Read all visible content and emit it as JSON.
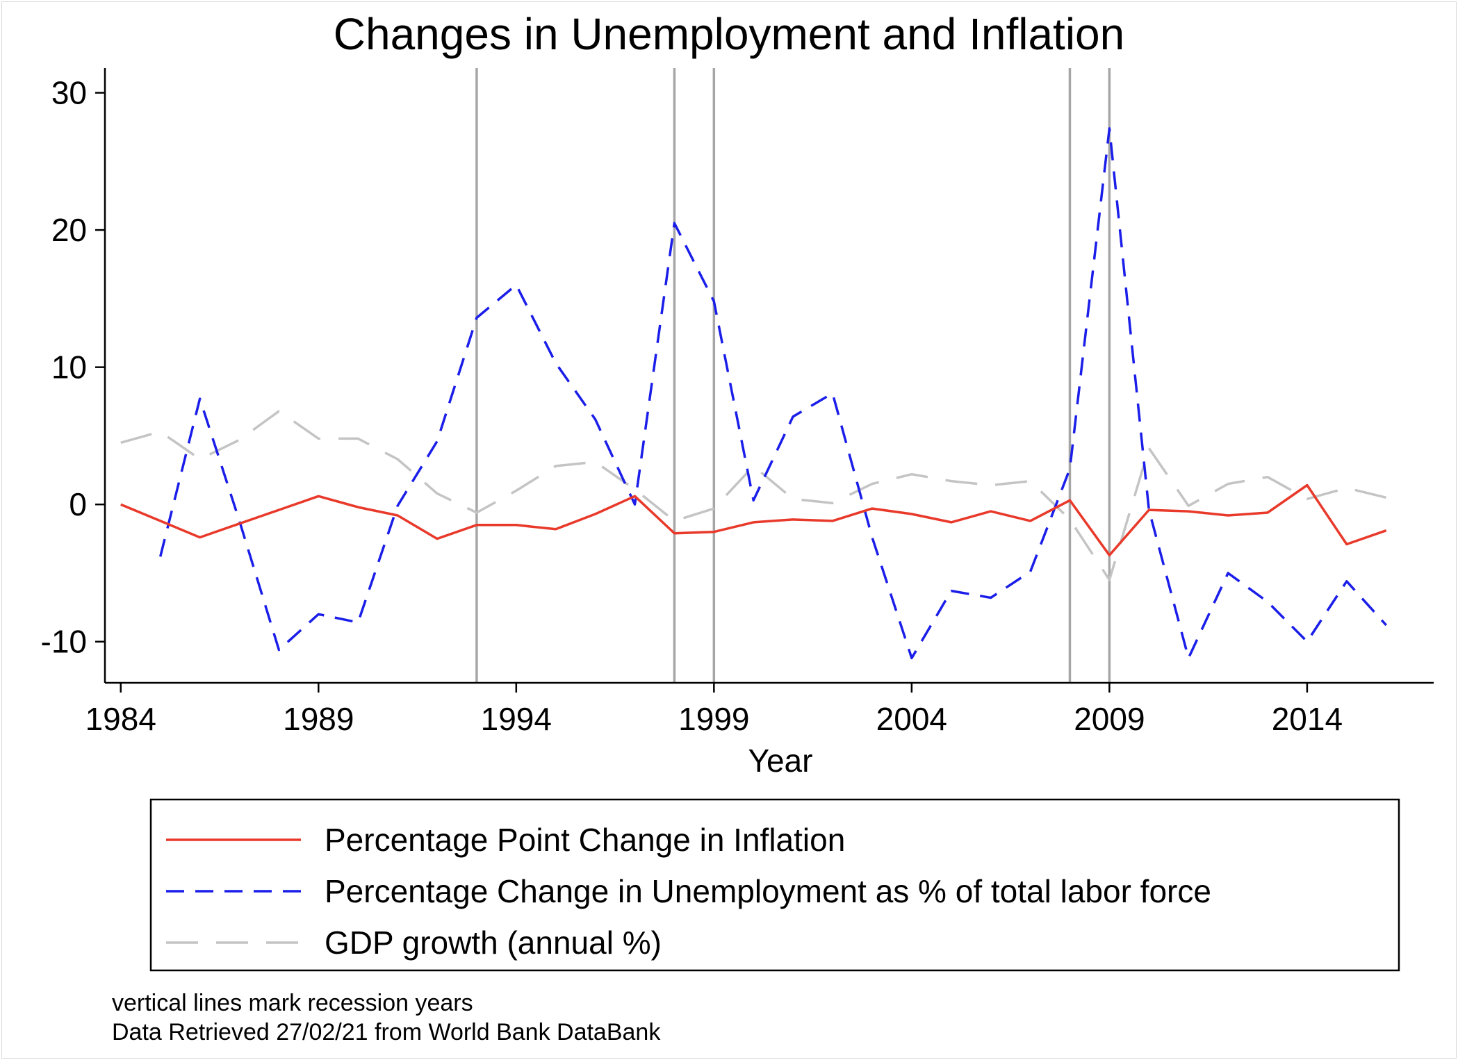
{
  "chart_data": {
    "type": "line",
    "title": "Changes in Unemployment and Inflation",
    "xlabel": "Year",
    "ylabel": "",
    "xlim": [
      1983.6,
      2017.2
    ],
    "ylim": [
      -13,
      31.8
    ],
    "xticks": [
      1984,
      1989,
      1994,
      1999,
      2004,
      2009,
      2014
    ],
    "yticks": [
      -10,
      0,
      10,
      20,
      30
    ],
    "grid": false,
    "recession_years": [
      1993,
      1998,
      1999,
      2008,
      2009
    ],
    "series": [
      {
        "name": "Percentage Point Change in Inflation",
        "style": "solid",
        "color": "#e8392a",
        "x": [
          1984,
          1985,
          1986,
          1987,
          1988,
          1989,
          1990,
          1991,
          1992,
          1993,
          1994,
          1995,
          1996,
          1997,
          1998,
          1999,
          2000,
          2001,
          2002,
          2003,
          2004,
          2005,
          2006,
          2007,
          2008,
          2009,
          2010,
          2011,
          2012,
          2013,
          2014,
          2015,
          2016
        ],
        "y": [
          0,
          -1.2,
          -2.4,
          -1.4,
          -0.4,
          0.6,
          -0.2,
          -0.8,
          -2.5,
          -1.5,
          -1.5,
          -1.8,
          -0.7,
          0.6,
          -2.1,
          -2.0,
          -1.3,
          -1.1,
          -1.2,
          -0.3,
          -0.7,
          -1.3,
          -0.5,
          -1.2,
          0.3,
          -3.7,
          -0.4,
          -0.5,
          -0.8,
          -0.6,
          1.4,
          -2.9,
          -1.9
        ]
      },
      {
        "name": "Percentage Change in Unemployment as % of total labor force",
        "style": "dash",
        "color": "#1a1ee8",
        "x": [
          1985,
          1986,
          1987,
          1988,
          1989,
          1990,
          1991,
          1992,
          1993,
          1994,
          1995,
          1996,
          1997,
          1998,
          1999,
          2000,
          2001,
          2002,
          2003,
          2004,
          2005,
          2006,
          2007,
          2008,
          2009,
          2010,
          2011,
          2012,
          2013,
          2014,
          2015,
          2016
        ],
        "y": [
          -3.8,
          7.7,
          -1.2,
          -10.6,
          -8.0,
          -8.6,
          -0.1,
          4.6,
          13.6,
          16.0,
          10.3,
          6.2,
          0,
          20.5,
          14.8,
          0.3,
          6.4,
          8.1,
          -2.4,
          -11.2,
          -6.3,
          -6.8,
          -4.9,
          2.6,
          27.4,
          -0.4,
          -11.2,
          -5.0,
          -7.1,
          -10.0,
          -5.6,
          -8.8
        ]
      },
      {
        "name": "GDP growth (annual %)",
        "style": "longdash",
        "color": "#c4c4c4",
        "x": [
          1984,
          1985,
          1986,
          1987,
          1988,
          1989,
          1990,
          1991,
          1992,
          1993,
          1994,
          1995,
          1996,
          1997,
          1998,
          1999,
          2000,
          2001,
          2002,
          2003,
          2004,
          2005,
          2006,
          2007,
          2008,
          2009,
          2010,
          2011,
          2012,
          2013,
          2014,
          2015,
          2016
        ],
        "y": [
          4.5,
          5.3,
          3.3,
          4.7,
          6.8,
          4.8,
          4.8,
          3.3,
          0.8,
          -0.6,
          1.0,
          2.8,
          3.1,
          1.1,
          -1.2,
          -0.3,
          2.8,
          0.4,
          0.1,
          1.5,
          2.2,
          1.7,
          1.4,
          1.7,
          -1.1,
          -5.5,
          4.1,
          -0.1,
          1.5,
          2.0,
          0.4,
          1.2,
          0.5
        ]
      }
    ]
  },
  "notes": {
    "line1": "vertical lines mark recession years",
    "line2": "Data Retrieved 27/02/21 from World Bank DataBank"
  },
  "colors": {
    "recession_line": "#a6a6a6",
    "axis": "#000000"
  }
}
